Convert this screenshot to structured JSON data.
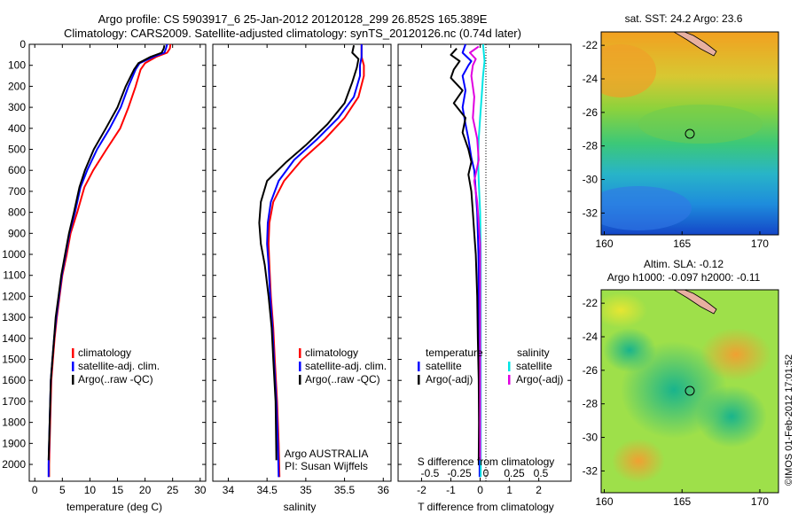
{
  "header": {
    "title_line1": "Argo profile: CS 5903917_6 25-Jan-2012 20120128_299 26.852S 165.389E",
    "title_line2": "Climatology: CARS2009. Satellite-adjusted climatology: synTS_20120126.nc (0.74d later)"
  },
  "colors": {
    "climatology": "#ff0000",
    "satellite": "#0000ff",
    "argo": "#000000",
    "sat_salinity": "#00e5e5",
    "argo_salinity_diff": "#e000e0"
  },
  "chart_data": [
    {
      "type": "line",
      "id": "temperature",
      "xlabel": "temperature (deg C)",
      "ylim": [
        2080,
        0
      ],
      "xlim": [
        -1,
        31
      ],
      "xticks": [
        0,
        5,
        10,
        15,
        20,
        25,
        30
      ],
      "yticks": [
        0,
        100,
        200,
        300,
        400,
        500,
        600,
        700,
        800,
        900,
        1000,
        1100,
        1200,
        1300,
        1400,
        1500,
        1600,
        1700,
        1800,
        1900,
        2000
      ],
      "legend": [
        "climatology",
        "satellite-adj. clim.",
        "Argo(..raw -QC)"
      ],
      "series": [
        {
          "name": "climatology",
          "color": "#ff0000",
          "points": [
            [
              24.6,
              0
            ],
            [
              24.5,
              20
            ],
            [
              24.0,
              40
            ],
            [
              22.0,
              60
            ],
            [
              20.0,
              90
            ],
            [
              19.2,
              120
            ],
            [
              18.3,
              200
            ],
            [
              17.0,
              300
            ],
            [
              15.5,
              400
            ],
            [
              13.0,
              500
            ],
            [
              10.6,
              600
            ],
            [
              9.0,
              680
            ],
            [
              7.7,
              800
            ],
            [
              6.5,
              900
            ],
            [
              5.8,
              1000
            ],
            [
              5.0,
              1100
            ],
            [
              4.5,
              1200
            ],
            [
              4.0,
              1300
            ],
            [
              3.6,
              1400
            ],
            [
              3.3,
              1500
            ],
            [
              3.0,
              1600
            ],
            [
              2.8,
              1800
            ],
            [
              2.6,
              2000
            ],
            [
              2.6,
              2060
            ]
          ]
        },
        {
          "name": "satellite-adj. clim.",
          "color": "#0000ff",
          "points": [
            [
              24.0,
              0
            ],
            [
              23.8,
              20
            ],
            [
              23.5,
              40
            ],
            [
              21.5,
              60
            ],
            [
              19.0,
              90
            ],
            [
              18.3,
              120
            ],
            [
              17.0,
              200
            ],
            [
              15.6,
              300
            ],
            [
              13.6,
              400
            ],
            [
              11.3,
              500
            ],
            [
              9.5,
              600
            ],
            [
              8.3,
              680
            ],
            [
              7.3,
              800
            ],
            [
              6.3,
              900
            ],
            [
              5.6,
              1000
            ],
            [
              4.9,
              1100
            ],
            [
              4.4,
              1200
            ],
            [
              3.9,
              1300
            ],
            [
              3.5,
              1400
            ],
            [
              3.2,
              1500
            ],
            [
              2.9,
              1600
            ],
            [
              2.7,
              1800
            ],
            [
              2.5,
              2000
            ],
            [
              2.5,
              2060
            ]
          ]
        },
        {
          "name": "Argo(..raw -QC)",
          "color": "#000000",
          "points": [
            [
              23.5,
              5
            ],
            [
              23.4,
              20
            ],
            [
              23.0,
              40
            ],
            [
              21.0,
              60
            ],
            [
              18.8,
              90
            ],
            [
              18.0,
              120
            ],
            [
              16.5,
              200
            ],
            [
              15.0,
              300
            ],
            [
              12.9,
              400
            ],
            [
              10.7,
              500
            ],
            [
              9.1,
              600
            ],
            [
              8.1,
              680
            ],
            [
              7.1,
              800
            ],
            [
              6.2,
              900
            ],
            [
              5.5,
              1000
            ],
            [
              4.8,
              1100
            ],
            [
              4.3,
              1200
            ],
            [
              3.8,
              1300
            ],
            [
              3.5,
              1400
            ],
            [
              3.2,
              1500
            ],
            [
              2.9,
              1600
            ],
            [
              2.7,
              1800
            ],
            [
              2.5,
              1980
            ]
          ]
        }
      ]
    },
    {
      "type": "line",
      "id": "salinity",
      "xlabel": "salinity",
      "ylim": [
        2080,
        0
      ],
      "xlim": [
        33.8,
        36.1
      ],
      "xticks": [
        34,
        34.5,
        35,
        35.5,
        36
      ],
      "legend": [
        "climatology",
        "satellite-adj. clim.",
        "Argo(..raw -QC)"
      ],
      "annotation": [
        "Argo AUSTRALIA",
        "PI: Susan Wijffels"
      ],
      "series": [
        {
          "name": "climatology",
          "color": "#ff0000",
          "points": [
            [
              35.72,
              0
            ],
            [
              35.72,
              60
            ],
            [
              35.75,
              100
            ],
            [
              35.75,
              150
            ],
            [
              35.68,
              250
            ],
            [
              35.5,
              350
            ],
            [
              35.25,
              450
            ],
            [
              34.95,
              550
            ],
            [
              34.72,
              650
            ],
            [
              34.58,
              750
            ],
            [
              34.53,
              850
            ],
            [
              34.52,
              950
            ],
            [
              34.53,
              1050
            ],
            [
              34.55,
              1200
            ],
            [
              34.58,
              1350
            ],
            [
              34.6,
              1500
            ],
            [
              34.63,
              1700
            ],
            [
              34.65,
              1900
            ],
            [
              34.66,
              2060
            ]
          ]
        },
        {
          "name": "satellite-adj. clim.",
          "color": "#0000ff",
          "points": [
            [
              35.72,
              0
            ],
            [
              35.72,
              60
            ],
            [
              35.7,
              100
            ],
            [
              35.7,
              150
            ],
            [
              35.62,
              250
            ],
            [
              35.42,
              350
            ],
            [
              35.15,
              450
            ],
            [
              34.85,
              550
            ],
            [
              34.65,
              650
            ],
            [
              34.55,
              750
            ],
            [
              34.51,
              850
            ],
            [
              34.5,
              950
            ],
            [
              34.52,
              1050
            ],
            [
              34.54,
              1200
            ],
            [
              34.57,
              1350
            ],
            [
              34.59,
              1500
            ],
            [
              34.62,
              1700
            ],
            [
              34.64,
              1900
            ],
            [
              34.65,
              2060
            ]
          ]
        },
        {
          "name": "Argo(..raw -QC)",
          "color": "#000000",
          "points": [
            [
              35.62,
              5
            ],
            [
              35.6,
              40
            ],
            [
              35.68,
              70
            ],
            [
              35.66,
              110
            ],
            [
              35.6,
              180
            ],
            [
              35.5,
              280
            ],
            [
              35.28,
              380
            ],
            [
              35.0,
              480
            ],
            [
              34.75,
              560
            ],
            [
              34.5,
              650
            ],
            [
              34.42,
              750
            ],
            [
              34.4,
              850
            ],
            [
              34.42,
              950
            ],
            [
              34.47,
              1050
            ],
            [
              34.52,
              1200
            ],
            [
              34.56,
              1350
            ],
            [
              34.58,
              1500
            ],
            [
              34.61,
              1700
            ],
            [
              34.62,
              1980
            ]
          ]
        }
      ]
    },
    {
      "type": "line",
      "id": "difference",
      "xlabel": "T difference from climatology",
      "xlabel_top": "S difference from climatology",
      "ylim": [
        2080,
        0
      ],
      "xlim": [
        -2.8,
        3.1
      ],
      "xticks": [
        -2,
        -1,
        0,
        1,
        2
      ],
      "xticks_top": [
        "-0.5",
        "-0.25",
        "0",
        "0.25",
        "0.5"
      ],
      "legend_left": {
        "title": "temperature",
        "items": [
          "satellite",
          "Argo(-adj)"
        ]
      },
      "legend_right": {
        "title": "salinity",
        "items": [
          "satellite",
          "Argo(-adj)"
        ]
      },
      "series": [
        {
          "name": "T satellite",
          "color": "#0000ff",
          "points": [
            [
              -0.5,
              0
            ],
            [
              -0.6,
              40
            ],
            [
              -0.3,
              80
            ],
            [
              -0.4,
              100
            ],
            [
              -0.6,
              150
            ],
            [
              -0.5,
              220
            ],
            [
              -0.6,
              300
            ],
            [
              -0.5,
              380
            ],
            [
              -0.4,
              450
            ],
            [
              -0.3,
              540
            ],
            [
              -0.2,
              600
            ],
            [
              -0.15,
              700
            ],
            [
              -0.1,
              800
            ],
            [
              -0.08,
              900
            ],
            [
              -0.06,
              1000
            ],
            [
              -0.05,
              1200
            ],
            [
              -0.04,
              1400
            ],
            [
              -0.03,
              1600
            ],
            [
              -0.02,
              1800
            ],
            [
              -0.02,
              2060
            ]
          ]
        },
        {
          "name": "T Argo(-adj)",
          "color": "#000000",
          "points": [
            [
              -0.8,
              20
            ],
            [
              -1.0,
              50
            ],
            [
              -0.7,
              80
            ],
            [
              -0.9,
              120
            ],
            [
              -1.0,
              160
            ],
            [
              -0.6,
              220
            ],
            [
              -0.9,
              280
            ],
            [
              -0.5,
              350
            ],
            [
              -0.6,
              420
            ],
            [
              -0.4,
              500
            ],
            [
              -0.3,
              560
            ],
            [
              -0.4,
              620
            ],
            [
              -0.3,
              700
            ],
            [
              -0.25,
              800
            ],
            [
              -0.2,
              900
            ],
            [
              -0.15,
              1000
            ],
            [
              -0.1,
              1200
            ],
            [
              -0.08,
              1400
            ],
            [
              -0.05,
              1600
            ],
            [
              -0.04,
              1800
            ],
            [
              -0.05,
              1980
            ]
          ]
        },
        {
          "name": "S satellite",
          "color": "#00e5e5",
          "points": [
            [
              0.1,
              0
            ],
            [
              0.15,
              80
            ],
            [
              0.1,
              150
            ],
            [
              0.05,
              250
            ],
            [
              0.0,
              350
            ],
            [
              -0.05,
              450
            ],
            [
              -0.07,
              550
            ],
            [
              -0.05,
              650
            ],
            [
              0.0,
              800
            ],
            [
              0.02,
              1000
            ],
            [
              0.02,
              1200
            ],
            [
              0.02,
              1500
            ],
            [
              0.02,
              1800
            ],
            [
              0.02,
              2060
            ]
          ]
        },
        {
          "name": "S Argo(-adj)",
          "color": "#e000e0",
          "points": [
            [
              -0.05,
              10
            ],
            [
              -0.35,
              40
            ],
            [
              -0.15,
              70
            ],
            [
              -0.25,
              100
            ],
            [
              -0.3,
              150
            ],
            [
              -0.2,
              250
            ],
            [
              -0.25,
              350
            ],
            [
              -0.1,
              450
            ],
            [
              -0.05,
              550
            ],
            [
              -0.2,
              650
            ],
            [
              -0.1,
              750
            ],
            [
              -0.05,
              850
            ],
            [
              0.0,
              950
            ],
            [
              0.0,
              1100
            ],
            [
              0.0,
              1300
            ],
            [
              0.0,
              1600
            ],
            [
              0.0,
              1980
            ]
          ]
        }
      ]
    },
    {
      "type": "heatmap",
      "id": "sst_map",
      "title": "sat. SST: 24.2 Argo: 23.6",
      "xticks": [
        160,
        165,
        170
      ],
      "yticks": [
        -22,
        -24,
        -26,
        -28,
        -30,
        -32
      ]
    },
    {
      "type": "heatmap",
      "id": "sla_map",
      "title_line1": "Altim. SLA: -0.12",
      "title_line2": "Argo h1000: -0.097 h2000: -0.11",
      "xticks": [
        160,
        165,
        170
      ],
      "yticks": [
        -22,
        -24,
        -26,
        -28,
        -30,
        -32
      ]
    }
  ],
  "footer": {
    "credit": "©IMOS 01-Feb-2012 17:01:52"
  }
}
